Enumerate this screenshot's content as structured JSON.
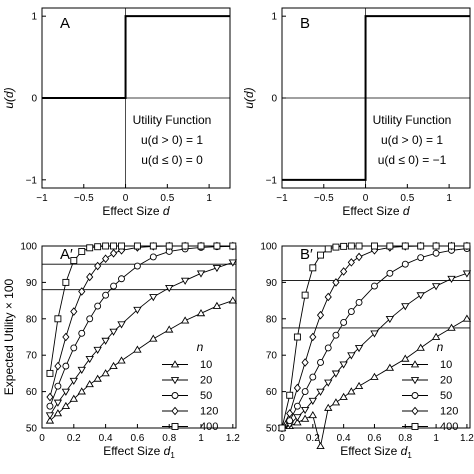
{
  "chart_data": [
    {
      "type": "line",
      "panel_label": "A",
      "xlabel": "Effect Size",
      "xlabel_var": "d",
      "ylabel": "u(d)",
      "xlim": [
        -1,
        1.25
      ],
      "ylim": [
        -1.1,
        1.1
      ],
      "xticks": [
        -1,
        -0.5,
        0,
        0.5,
        1
      ],
      "xtick_labels": [
        "−1",
        "−0.5",
        "0",
        "0.5",
        "1"
      ],
      "yticks": [
        -1,
        0,
        1
      ],
      "ytick_labels": [
        "−1",
        "0",
        "1"
      ],
      "series": [
        {
          "x": [
            -1,
            0,
            0,
            1.25
          ],
          "y": [
            0,
            0,
            1,
            1
          ]
        }
      ],
      "annotations": [
        "Utility Function",
        "u(d > 0) = 1",
        "u(d ≤ 0) = 0"
      ]
    },
    {
      "type": "line",
      "panel_label": "B",
      "xlabel": "Effect Size",
      "xlabel_var": "d",
      "ylabel": "u(d)",
      "xlim": [
        -1,
        1.25
      ],
      "ylim": [
        -1.1,
        1.1
      ],
      "xticks": [
        -1,
        -0.5,
        0,
        0.5,
        1
      ],
      "xtick_labels": [
        "−1",
        "−0.5",
        "0",
        "0.5",
        "1"
      ],
      "yticks": [
        -1,
        0,
        1
      ],
      "ytick_labels": [
        "−1",
        "0",
        "1"
      ],
      "series": [
        {
          "x": [
            -1,
            0,
            0,
            1.25
          ],
          "y": [
            -1,
            -1,
            1,
            1
          ]
        }
      ],
      "annotations": [
        "Utility Function",
        "u(d > 0) = 1",
        "u(d ≤ 0) = −1"
      ]
    },
    {
      "type": "line",
      "panel_label": "A′",
      "xlabel": "Effect Size",
      "xlabel_var": "d",
      "xlabel_sub": "1",
      "ylabel": "Expected Utility × 100",
      "xlim": [
        0,
        1.22
      ],
      "ylim": [
        50,
        100
      ],
      "xticks": [
        0,
        0.2,
        0.4,
        0.6,
        0.8,
        1,
        1.2
      ],
      "xtick_labels": [
        "0",
        "0.2",
        "0.4",
        "0.6",
        "0.8",
        "1",
        "1.2"
      ],
      "yticks": [
        50,
        60,
        70,
        80,
        90,
        100
      ],
      "ytick_labels": [
        "50",
        "60",
        "70",
        "80",
        "90",
        "100"
      ],
      "hlines": [
        95,
        88
      ],
      "legend_title": "n",
      "legend_position": "bottom-right",
      "x": [
        0.05,
        0.1,
        0.15,
        0.2,
        0.25,
        0.3,
        0.35,
        0.4,
        0.45,
        0.5,
        0.6,
        0.7,
        0.8,
        0.9,
        1.0,
        1.1,
        1.2
      ],
      "series": [
        {
          "name": "10",
          "marker": "triangle-up",
          "values": [
            52,
            54,
            56,
            58,
            60,
            62,
            63.5,
            65,
            67,
            68.5,
            71.5,
            74.5,
            77,
            79.5,
            81.5,
            83.5,
            85
          ]
        },
        {
          "name": "20",
          "marker": "triangle-down",
          "values": [
            53.5,
            57,
            60,
            63,
            66,
            69,
            71.5,
            74,
            76.5,
            78.5,
            82.5,
            86,
            88.5,
            90.5,
            92.5,
            94,
            95.5
          ]
        },
        {
          "name": "50",
          "marker": "circle",
          "values": [
            56,
            61.5,
            67,
            72,
            76,
            80,
            83.5,
            86.5,
            89,
            91,
            94.5,
            97,
            98.5,
            99.2,
            99.6,
            99.8,
            99.9
          ]
        },
        {
          "name": "120",
          "marker": "diamond",
          "values": [
            58.5,
            67,
            75,
            82,
            87.5,
            91.5,
            94.5,
            96.5,
            98,
            98.8,
            99.6,
            99.9,
            100,
            100,
            100,
            100,
            100
          ]
        },
        {
          "name": "400",
          "marker": "square",
          "values": [
            65,
            80,
            90,
            96,
            98.5,
            99.5,
            99.8,
            100,
            100,
            100,
            100,
            100,
            100,
            100,
            100,
            100,
            100
          ]
        }
      ]
    },
    {
      "type": "line",
      "panel_label": "B′",
      "xlabel": "Effect Size",
      "xlabel_var": "d",
      "xlabel_sub": "1",
      "ylabel": "",
      "xlim": [
        0,
        1.22
      ],
      "ylim": [
        50,
        100
      ],
      "xticks": [
        0,
        0.2,
        0.4,
        0.6,
        0.8,
        1,
        1.2
      ],
      "xtick_labels": [
        "0",
        "0.2",
        "0.4",
        "0.6",
        "0.8",
        "1",
        "1.2"
      ],
      "yticks": [
        50,
        60,
        70,
        80,
        90,
        100
      ],
      "ytick_labels": [
        "50",
        "60",
        "70",
        "80",
        "90",
        "100"
      ],
      "hlines": [
        90.5,
        77.5
      ],
      "legend_title": "n",
      "legend_position": "bottom-right",
      "x": [
        0.0,
        0.05,
        0.1,
        0.15,
        0.2,
        0.25,
        0.3,
        0.35,
        0.4,
        0.45,
        0.5,
        0.6,
        0.7,
        0.8,
        0.9,
        1.0,
        1.1,
        1.2
      ],
      "series": [
        {
          "name": "10",
          "marker": "triangle-up",
          "values": [
            50,
            50.5,
            51.5,
            52.5,
            53.5,
            45.0,
            55.5,
            57,
            58.5,
            60,
            61.5,
            64,
            66.5,
            69,
            72,
            75,
            77.5,
            80
          ]
        },
        {
          "name": "20",
          "marker": "triangle-down",
          "values": [
            50,
            51,
            53,
            55,
            57.5,
            60,
            62.5,
            65,
            67.5,
            70,
            72,
            76,
            80,
            83.5,
            86.5,
            89,
            91,
            92.5
          ]
        },
        {
          "name": "50",
          "marker": "circle",
          "values": [
            50,
            52,
            56,
            60,
            64,
            68,
            72,
            75.5,
            79,
            82,
            84.5,
            89,
            92.5,
            95,
            96.8,
            98,
            98.8,
            99.3
          ]
        },
        {
          "name": "120",
          "marker": "diamond",
          "values": [
            50,
            54,
            61,
            68,
            75,
            81,
            86,
            90,
            93,
            95.5,
            97,
            98.8,
            99.6,
            99.9,
            100,
            100,
            100,
            100
          ]
        },
        {
          "name": "400",
          "marker": "square",
          "values": [
            50,
            59,
            75,
            86.5,
            94,
            97.5,
            99.2,
            99.7,
            99.9,
            100,
            100,
            100,
            100,
            100,
            100,
            100,
            100,
            100
          ]
        }
      ]
    }
  ]
}
